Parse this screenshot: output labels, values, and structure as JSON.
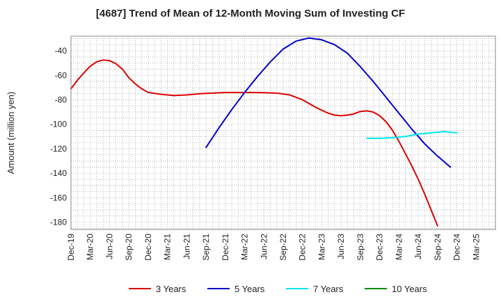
{
  "chart_data": {
    "type": "line",
    "title": "[4687]  Trend of Mean of 12-Month Moving Sum of Investing CF",
    "xlabel": "",
    "ylabel": "Amount (million yen)",
    "ylim": [
      -186,
      -28
    ],
    "yticks": [
      -40,
      -60,
      -80,
      -100,
      -120,
      -140,
      -160,
      -180
    ],
    "xlim": [
      0,
      66
    ],
    "grid": true,
    "legend_position": "bottom",
    "categories": [
      "Dec-19",
      "Mar-20",
      "Jun-20",
      "Sep-20",
      "Dec-20",
      "Mar-21",
      "Jun-21",
      "Sep-21",
      "Dec-21",
      "Mar-22",
      "Jun-22",
      "Sep-22",
      "Dec-22",
      "Mar-23",
      "Jun-23",
      "Sep-23",
      "Dec-23",
      "Mar-24",
      "Jun-24",
      "Sep-24",
      "Dec-24",
      "Mar-25"
    ],
    "series": [
      {
        "name": "3 Years",
        "color": "#dd0000",
        "x": [
          0,
          1,
          2,
          3,
          4,
          5,
          6,
          7,
          8,
          9,
          10,
          11,
          12,
          14,
          16,
          18,
          20,
          22,
          24,
          26,
          28,
          30,
          32,
          34,
          36,
          38,
          40,
          41,
          42,
          43,
          44,
          45,
          46,
          47,
          48,
          49,
          50,
          51,
          52,
          53,
          54,
          55,
          56,
          57,
          58,
          59,
          60
        ],
        "values": [
          -71,
          -64,
          -58,
          -52.5,
          -49,
          -47.5,
          -48,
          -50.5,
          -55,
          -62,
          -67,
          -71,
          -74,
          -75.5,
          -76.5,
          -76,
          -75,
          -74.5,
          -74,
          -74,
          -74,
          -74.2,
          -74.5,
          -76,
          -80,
          -86,
          -91,
          -92.5,
          -93,
          -92.5,
          -91.5,
          -89.5,
          -89,
          -90,
          -93,
          -98,
          -105,
          -114,
          -124,
          -134,
          -145,
          -157,
          -170,
          -183,
          null,
          null,
          null
        ]
      },
      {
        "name": "5 Years",
        "color": "#0000cc",
        "x": [
          21,
          23,
          25,
          27,
          29,
          31,
          33,
          35,
          37,
          39,
          41,
          43,
          45,
          47,
          49,
          51,
          53,
          55,
          57,
          59
        ],
        "values": [
          -119,
          -103,
          -88,
          -74,
          -61,
          -49,
          -38.5,
          -32,
          -29.5,
          -31,
          -35,
          -42,
          -53,
          -65,
          -78,
          -91,
          -104,
          -116,
          -126,
          -135
        ]
      },
      {
        "name": "7 Years",
        "color": "#00e5ee",
        "x": [
          46,
          48,
          50,
          52,
          54,
          56,
          58,
          60
        ],
        "values": [
          -111.5,
          -111.5,
          -111,
          -110,
          -108,
          -107,
          -106,
          -107
        ]
      },
      {
        "name": "10 Years",
        "color": "#008800",
        "x": [],
        "values": []
      }
    ]
  }
}
